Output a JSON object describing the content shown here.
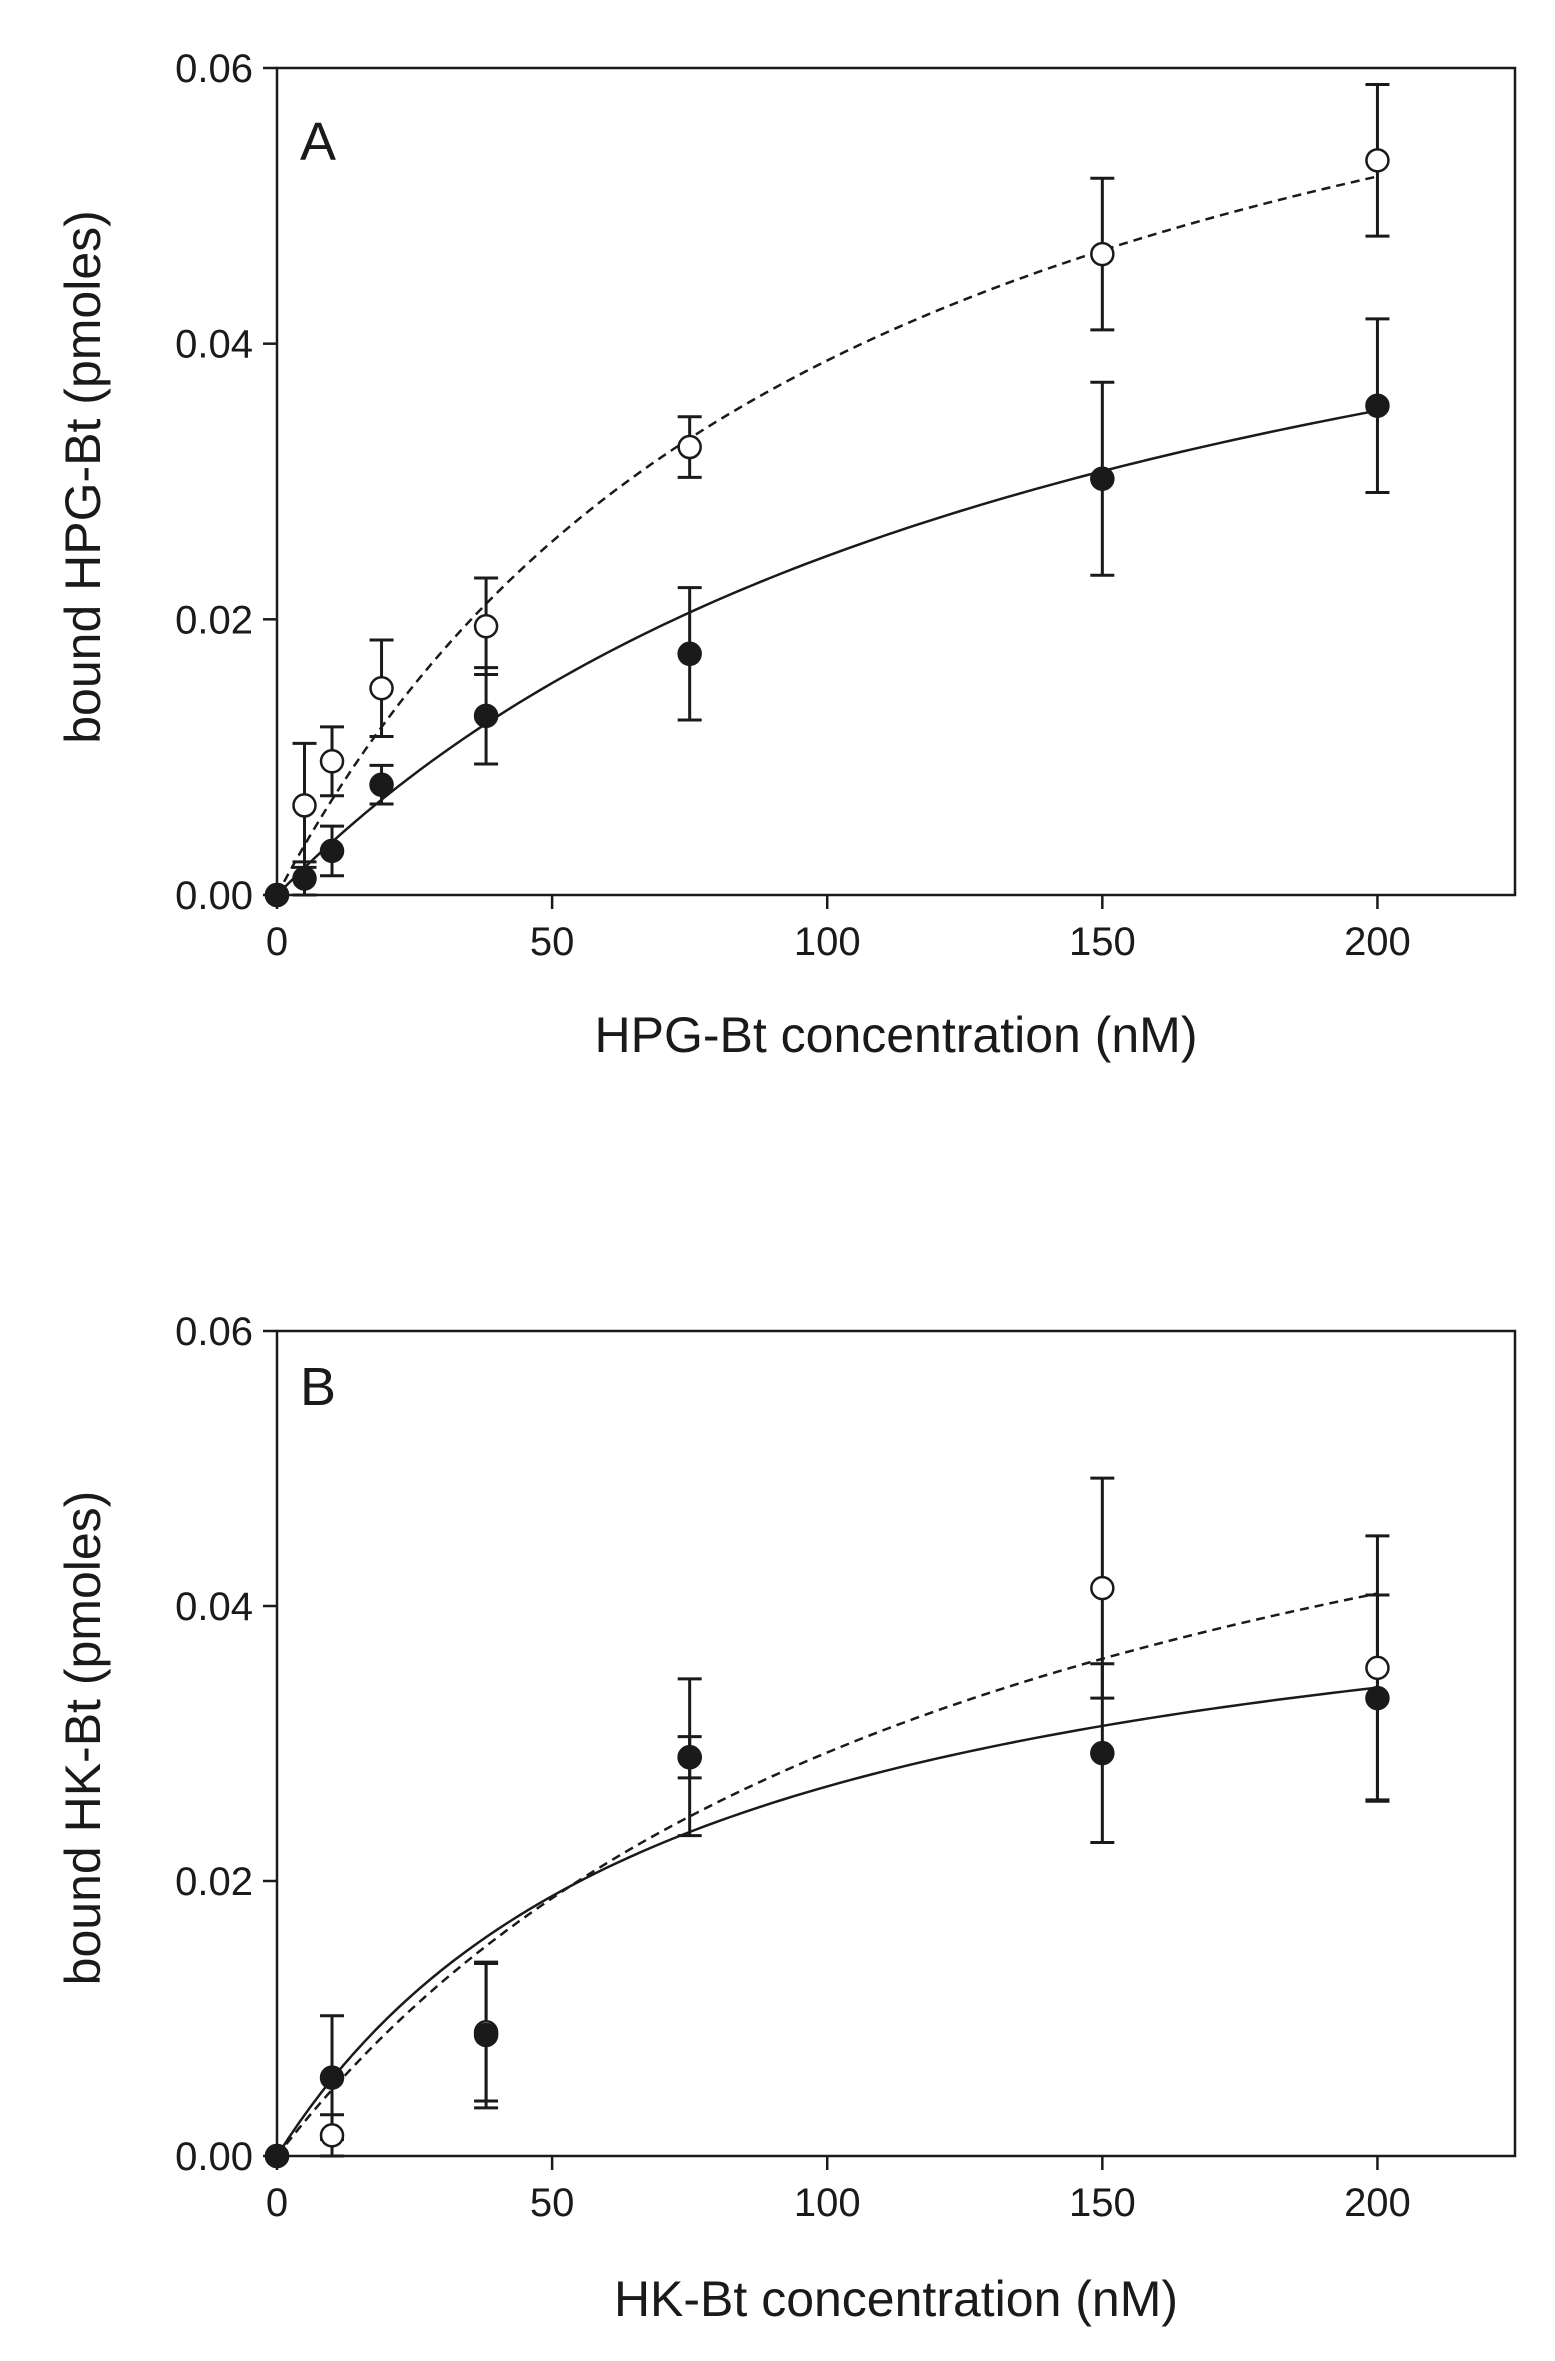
{
  "chart_data": [
    {
      "type": "scatter",
      "panel_label": "A",
      "xlabel": "HPG-Bt concentration (nM)",
      "ylabel": "bound HPG-Bt (pmoles)",
      "xlim": [
        0,
        225
      ],
      "ylim": [
        0,
        0.06
      ],
      "xticks": [
        0,
        50,
        100,
        150,
        200
      ],
      "yticks": [
        0.0,
        0.02,
        0.04,
        0.06
      ],
      "xtick_labels": [
        "0",
        "50",
        "100",
        "150",
        "200"
      ],
      "ytick_labels": [
        "0.00",
        "0.02",
        "0.04",
        "0.06"
      ],
      "series": [
        {
          "name": "open",
          "marker": "open-circle",
          "line": "dashed",
          "fit": {
            "bmax": 0.0795,
            "kd": 105
          },
          "x": [
            0,
            5,
            10,
            19,
            38,
            75,
            150,
            200
          ],
          "y": [
            0.0,
            0.0065,
            0.0097,
            0.015,
            0.0195,
            0.0325,
            0.0465,
            0.0533
          ],
          "err": [
            0.0,
            0.0045,
            0.0025,
            0.0035,
            0.0035,
            0.0022,
            0.0055,
            0.0055
          ]
        },
        {
          "name": "filled",
          "marker": "filled-circle",
          "line": "solid",
          "fit": {
            "bmax": 0.0615,
            "kd": 150
          },
          "x": [
            0,
            5,
            10,
            19,
            38,
            75,
            150,
            200
          ],
          "y": [
            0.0,
            0.0012,
            0.0032,
            0.008,
            0.013,
            0.0175,
            0.0302,
            0.0355
          ],
          "err": [
            0.0,
            0.0012,
            0.0018,
            0.0014,
            0.0035,
            0.0048,
            0.007,
            0.0063
          ]
        }
      ]
    },
    {
      "type": "scatter",
      "panel_label": "B",
      "xlabel": "HK-Bt concentration (nM)",
      "ylabel": "bound HK-Bt (pmoles)",
      "xlim": [
        0,
        225
      ],
      "ylim": [
        0,
        0.06
      ],
      "xticks": [
        0,
        50,
        100,
        150,
        200
      ],
      "yticks": [
        0.0,
        0.02,
        0.04,
        0.06
      ],
      "xtick_labels": [
        "0",
        "50",
        "100",
        "150",
        "200"
      ],
      "ytick_labels": [
        "0.00",
        "0.02",
        "0.04",
        "0.06"
      ],
      "series": [
        {
          "name": "open",
          "marker": "open-circle",
          "line": "dashed",
          "fit": {
            "bmax": 0.0675,
            "kd": 130
          },
          "x": [
            0,
            10,
            38,
            75,
            150,
            200
          ],
          "y": [
            0.0,
            0.0015,
            0.009,
            0.029,
            0.0413,
            0.0355
          ],
          "err": [
            0.0,
            0.0015,
            0.005,
            0.0057,
            0.008,
            0.0096
          ]
        },
        {
          "name": "filled",
          "marker": "filled-circle",
          "line": "solid",
          "fit": {
            "bmax": 0.0465,
            "kd": 73
          },
          "x": [
            0,
            10,
            38,
            75,
            150,
            200
          ],
          "y": [
            0.0,
            0.0057,
            0.0088,
            0.029,
            0.0293,
            0.0333
          ],
          "err": [
            0.0,
            0.0045,
            0.0053,
            0.0015,
            0.0065,
            0.0075
          ]
        }
      ]
    }
  ]
}
